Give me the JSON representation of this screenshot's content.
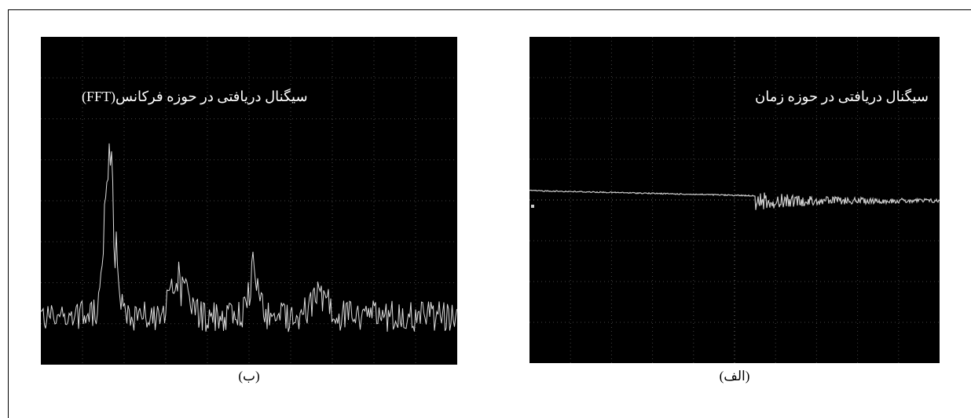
{
  "panels": [
    {
      "label": "سیگنال دریافتی در حوزه فرکانس(FFT)",
      "caption": "(ب)"
    },
    {
      "label": "سیگنال دریافتی در حوزه زمان",
      "caption": "(الف)"
    }
  ]
}
